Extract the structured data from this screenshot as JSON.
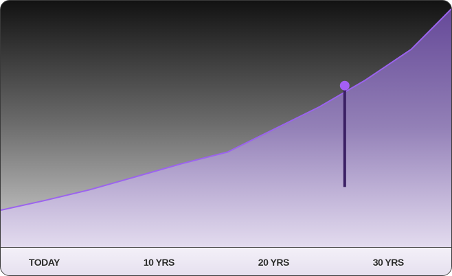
{
  "chart_data": {
    "type": "area",
    "title": "",
    "xlabel": "",
    "ylabel": "",
    "categories": [
      "TODAY",
      "10 YRS",
      "20 YRS",
      "30 YRS"
    ],
    "xlim": [
      -3.8,
      35.5
    ],
    "ylim": [
      0,
      3.6
    ],
    "grid": false,
    "legend": "none",
    "series": [
      {
        "x": [
          -3.8,
          0,
          4,
          8,
          12,
          16,
          20,
          24,
          28,
          32,
          35.5
        ],
        "values": [
          0.54,
          0.68,
          0.84,
          1.03,
          1.22,
          1.39,
          1.72,
          2.05,
          2.44,
          2.89,
          3.48
        ]
      }
    ],
    "marker": {
      "x": 26.2,
      "y": 2.36,
      "stem_bottom": 0.88
    },
    "colors": {
      "line": "#9b63ee",
      "marker": "#a45ff5",
      "stem": "#3a1f63",
      "fill": "#7d5cb4"
    }
  }
}
